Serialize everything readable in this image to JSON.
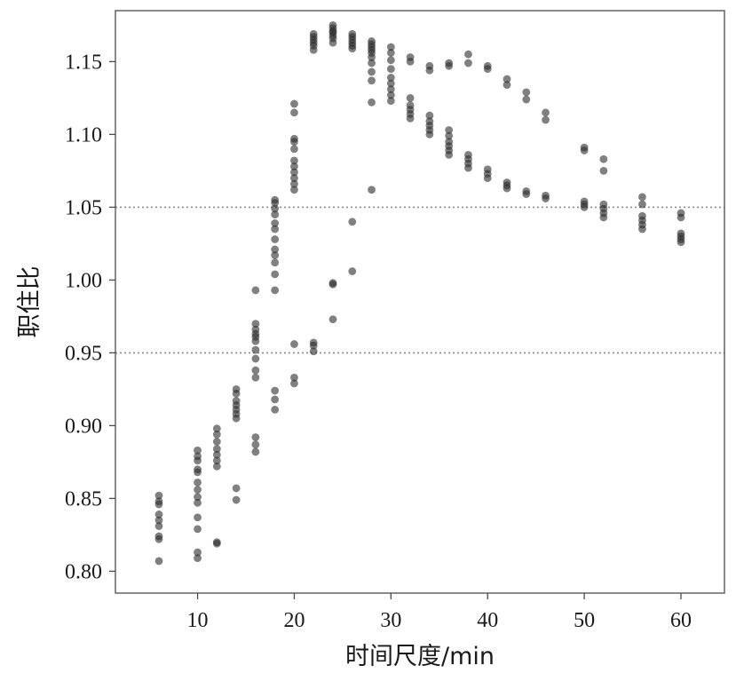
{
  "chart_data": {
    "type": "scatter",
    "title": "",
    "xlabel": "时间尺度/min",
    "ylabel": "职住比",
    "xlim": [
      1.5,
      64.5
    ],
    "ylim": [
      0.785,
      1.185
    ],
    "x_ticks": [
      10,
      20,
      30,
      40,
      50,
      60
    ],
    "x_tick_labels": [
      "10",
      "20",
      "30",
      "40",
      "50",
      "60"
    ],
    "y_ticks": [
      0.8,
      0.85,
      0.9,
      0.95,
      1.0,
      1.05,
      1.1,
      1.15
    ],
    "y_tick_labels": [
      "0.80",
      "0.85",
      "0.90",
      "0.95",
      "1.00",
      "1.05",
      "1.10",
      "1.15"
    ],
    "reference_lines": [
      0.95,
      1.05
    ],
    "grid": false,
    "legend": "none",
    "point_color": "#2b2b2b",
    "point_opacity": 0.6,
    "reference_line_color": "#8c8c8c",
    "points": [
      [
        6,
        0.807
      ],
      [
        6,
        0.822
      ],
      [
        6,
        0.824
      ],
      [
        6,
        0.831
      ],
      [
        6,
        0.835
      ],
      [
        6,
        0.839
      ],
      [
        6,
        0.846
      ],
      [
        6,
        0.848
      ],
      [
        6,
        0.852
      ],
      [
        10,
        0.809
      ],
      [
        10,
        0.813
      ],
      [
        10,
        0.829
      ],
      [
        10,
        0.837
      ],
      [
        10,
        0.847
      ],
      [
        10,
        0.851
      ],
      [
        10,
        0.856
      ],
      [
        10,
        0.861
      ],
      [
        10,
        0.868
      ],
      [
        10,
        0.87
      ],
      [
        10,
        0.876
      ],
      [
        10,
        0.879
      ],
      [
        10,
        0.883
      ],
      [
        12,
        0.819
      ],
      [
        12,
        0.82
      ],
      [
        12,
        0.872
      ],
      [
        12,
        0.876
      ],
      [
        12,
        0.88
      ],
      [
        12,
        0.884
      ],
      [
        12,
        0.889
      ],
      [
        12,
        0.894
      ],
      [
        12,
        0.898
      ],
      [
        14,
        0.849
      ],
      [
        14,
        0.857
      ],
      [
        14,
        0.905
      ],
      [
        14,
        0.908
      ],
      [
        14,
        0.911
      ],
      [
        14,
        0.914
      ],
      [
        14,
        0.917
      ],
      [
        14,
        0.922
      ],
      [
        14,
        0.925
      ],
      [
        16,
        0.882
      ],
      [
        16,
        0.887
      ],
      [
        16,
        0.892
      ],
      [
        16,
        0.933
      ],
      [
        16,
        0.938
      ],
      [
        16,
        0.946
      ],
      [
        16,
        0.952
      ],
      [
        16,
        0.958
      ],
      [
        16,
        0.961
      ],
      [
        16,
        0.963
      ],
      [
        16,
        0.966
      ],
      [
        16,
        0.97
      ],
      [
        16,
        0.993
      ],
      [
        18,
        0.911
      ],
      [
        18,
        0.918
      ],
      [
        18,
        0.924
      ],
      [
        18,
        0.993
      ],
      [
        18,
        1.004
      ],
      [
        18,
        1.012
      ],
      [
        18,
        1.017
      ],
      [
        18,
        1.021
      ],
      [
        18,
        1.028
      ],
      [
        18,
        1.035
      ],
      [
        18,
        1.039
      ],
      [
        18,
        1.045
      ],
      [
        18,
        1.049
      ],
      [
        18,
        1.053
      ],
      [
        18,
        1.055
      ],
      [
        20,
        0.929
      ],
      [
        20,
        0.933
      ],
      [
        20,
        0.956
      ],
      [
        20,
        1.062
      ],
      [
        20,
        1.066
      ],
      [
        20,
        1.07
      ],
      [
        20,
        1.074
      ],
      [
        20,
        1.078
      ],
      [
        20,
        1.082
      ],
      [
        20,
        1.09
      ],
      [
        20,
        1.095
      ],
      [
        20,
        1.097
      ],
      [
        20,
        1.115
      ],
      [
        20,
        1.121
      ],
      [
        22,
        0.951
      ],
      [
        22,
        0.955
      ],
      [
        22,
        0.957
      ],
      [
        22,
        1.158
      ],
      [
        22,
        1.161
      ],
      [
        22,
        1.163
      ],
      [
        22,
        1.165
      ],
      [
        22,
        1.167
      ],
      [
        22,
        1.169
      ],
      [
        24,
        0.973
      ],
      [
        24,
        0.997
      ],
      [
        24,
        0.998
      ],
      [
        24,
        1.163
      ],
      [
        24,
        1.166
      ],
      [
        24,
        1.168
      ],
      [
        24,
        1.17
      ],
      [
        24,
        1.171
      ],
      [
        24,
        1.173
      ],
      [
        24,
        1.175
      ],
      [
        26,
        1.006
      ],
      [
        26,
        1.04
      ],
      [
        26,
        1.159
      ],
      [
        26,
        1.161
      ],
      [
        26,
        1.163
      ],
      [
        26,
        1.165
      ],
      [
        26,
        1.167
      ],
      [
        26,
        1.169
      ],
      [
        28,
        1.062
      ],
      [
        28,
        1.122
      ],
      [
        28,
        1.137
      ],
      [
        28,
        1.143
      ],
      [
        28,
        1.149
      ],
      [
        28,
        1.153
      ],
      [
        28,
        1.156
      ],
      [
        28,
        1.158
      ],
      [
        28,
        1.16
      ],
      [
        28,
        1.162
      ],
      [
        28,
        1.164
      ],
      [
        30,
        1.123
      ],
      [
        30,
        1.127
      ],
      [
        30,
        1.131
      ],
      [
        30,
        1.135
      ],
      [
        30,
        1.139
      ],
      [
        30,
        1.145
      ],
      [
        30,
        1.151
      ],
      [
        30,
        1.156
      ],
      [
        30,
        1.16
      ],
      [
        32,
        1.111
      ],
      [
        32,
        1.114
      ],
      [
        32,
        1.117
      ],
      [
        32,
        1.12
      ],
      [
        32,
        1.125
      ],
      [
        32,
        1.15
      ],
      [
        32,
        1.153
      ],
      [
        34,
        1.1
      ],
      [
        34,
        1.103
      ],
      [
        34,
        1.106
      ],
      [
        34,
        1.109
      ],
      [
        34,
        1.113
      ],
      [
        34,
        1.144
      ],
      [
        34,
        1.147
      ],
      [
        36,
        1.086
      ],
      [
        36,
        1.089
      ],
      [
        36,
        1.092
      ],
      [
        36,
        1.095
      ],
      [
        36,
        1.099
      ],
      [
        36,
        1.103
      ],
      [
        36,
        1.147
      ],
      [
        36,
        1.149
      ],
      [
        38,
        1.077
      ],
      [
        38,
        1.08
      ],
      [
        38,
        1.083
      ],
      [
        38,
        1.086
      ],
      [
        38,
        1.149
      ],
      [
        38,
        1.155
      ],
      [
        40,
        1.07
      ],
      [
        40,
        1.073
      ],
      [
        40,
        1.076
      ],
      [
        40,
        1.145
      ],
      [
        40,
        1.147
      ],
      [
        42,
        1.063
      ],
      [
        42,
        1.065
      ],
      [
        42,
        1.067
      ],
      [
        42,
        1.134
      ],
      [
        42,
        1.138
      ],
      [
        44,
        1.059
      ],
      [
        44,
        1.061
      ],
      [
        44,
        1.124
      ],
      [
        44,
        1.129
      ],
      [
        46,
        1.056
      ],
      [
        46,
        1.058
      ],
      [
        46,
        1.11
      ],
      [
        46,
        1.115
      ],
      [
        50,
        1.05
      ],
      [
        50,
        1.052
      ],
      [
        50,
        1.054
      ],
      [
        50,
        1.089
      ],
      [
        50,
        1.091
      ],
      [
        52,
        1.043
      ],
      [
        52,
        1.046
      ],
      [
        52,
        1.049
      ],
      [
        52,
        1.052
      ],
      [
        52,
        1.075
      ],
      [
        52,
        1.083
      ],
      [
        56,
        1.035
      ],
      [
        56,
        1.038
      ],
      [
        56,
        1.041
      ],
      [
        56,
        1.044
      ],
      [
        56,
        1.052
      ],
      [
        56,
        1.057
      ],
      [
        60,
        1.026
      ],
      [
        60,
        1.028
      ],
      [
        60,
        1.03
      ],
      [
        60,
        1.032
      ],
      [
        60,
        1.043
      ],
      [
        60,
        1.046
      ]
    ]
  }
}
